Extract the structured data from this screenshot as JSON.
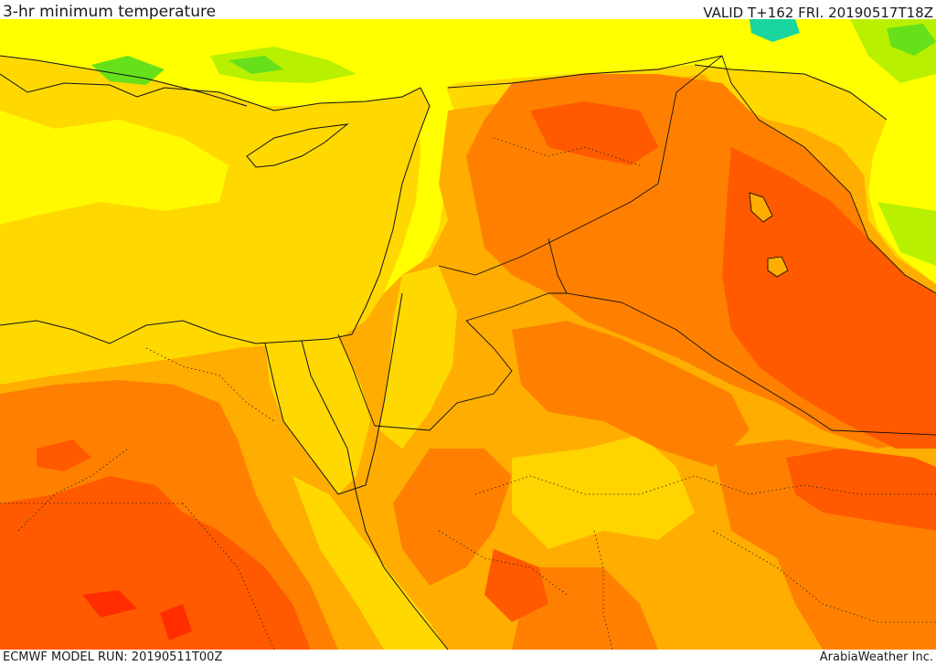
{
  "header": {
    "title": "3-hr minimum temperature",
    "valid": "VALID T+162 FRI. 20190517T18Z"
  },
  "footer": {
    "model_run": "ECMWF MODEL RUN: 20190511T00Z",
    "credit": "ArabiaWeather Inc."
  },
  "map": {
    "variable": "3-hr minimum temperature",
    "colors": {
      "green": "#66e01a",
      "light_green": "#b8f000",
      "yellow": "#ffff00",
      "gold": "#ffd800",
      "amber": "#ffad00",
      "orange": "#ff8000",
      "red_orange": "#ff5a00",
      "cyan": "#19d6a0"
    }
  }
}
